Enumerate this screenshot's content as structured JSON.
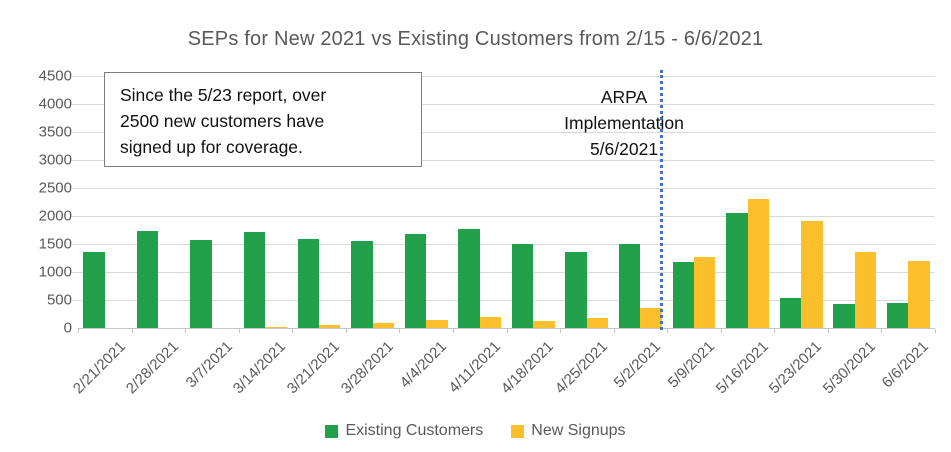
{
  "title": "SEPs for New 2021 vs Existing Customers from 2/15 - 6/6/2021",
  "annotation": {
    "lines": [
      "Since the 5/23 report, over",
      "2500 new customers have",
      "signed up for coverage."
    ]
  },
  "arpa_label": {
    "lines": [
      "ARPA",
      "Implementation",
      "5/6/2021"
    ]
  },
  "colors": {
    "existing_customers": "#22a14a",
    "new_signups": "#fbbf2c",
    "vline_blue": "#4472c4",
    "gridline_gray": "#d9d9d9",
    "text_gray": "#595959"
  },
  "chart_data": {
    "type": "bar",
    "title": "SEPs for New 2021 vs Existing Customers from 2/15 - 6/6/2021",
    "categories": [
      "2/21/2021",
      "2/28/2021",
      "3/7/2021",
      "3/14/2021",
      "3/21/2021",
      "3/28/2021",
      "4/4/2021",
      "4/11/2021",
      "4/18/2021",
      "4/25/2021",
      "5/2/2021",
      "5/9/2021",
      "5/16/2021",
      "5/23/2021",
      "5/30/2021",
      "6/6/2021"
    ],
    "series": [
      {
        "name": "Existing Customers",
        "color": "#22a14a",
        "values": [
          1360,
          1740,
          1580,
          1720,
          1590,
          1550,
          1670,
          1760,
          1500,
          1360,
          1500,
          1170,
          2050,
          540,
          430,
          440
        ]
      },
      {
        "name": "New Signups",
        "color": "#fbbf2c",
        "values": [
          0,
          0,
          0,
          15,
          60,
          90,
          140,
          200,
          130,
          170,
          360,
          1260,
          2310,
          1910,
          1350,
          1190
        ]
      }
    ],
    "xlabel": "",
    "ylabel": "",
    "ylim": [
      0,
      4500
    ],
    "ytick_step": 500,
    "grid": true,
    "legend_position": "bottom",
    "annotation_box": "Since the 5/23 report, over 2500 new customers have signed up for coverage.",
    "vline": {
      "after_category": "5/2/2021",
      "label": "ARPA Implementation 5/6/2021",
      "style": "dotted",
      "color": "#4472c4"
    }
  }
}
